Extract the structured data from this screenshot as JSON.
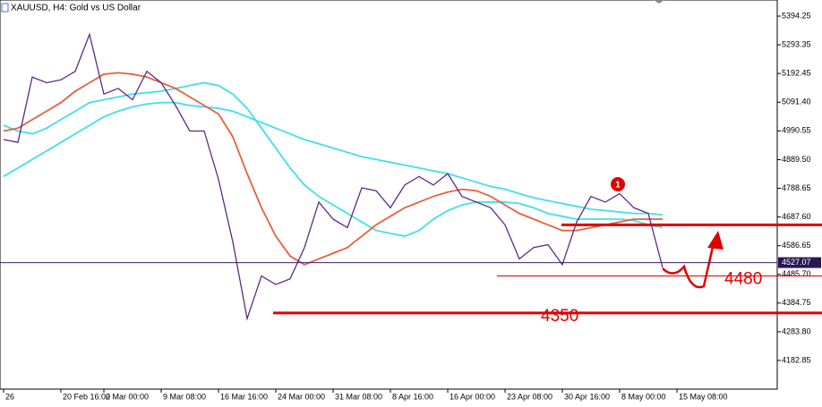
{
  "chart_data": {
    "type": "line",
    "title": "XAUUSD, H4:  Gold vs US Dollar",
    "categories": [
      "26",
      null,
      null,
      null,
      "20 Feb 16:00",
      null,
      null,
      "2 Mar 00:00",
      null,
      null,
      null,
      "9 Mar 08:00",
      null,
      null,
      null,
      "16 Mar 16:00",
      null,
      null,
      null,
      "24 Mar 00:00",
      null,
      null,
      null,
      "31 Mar 08:00",
      null,
      null,
      null,
      "8 Apr 16:00",
      null,
      null,
      null,
      "16 Apr 00:00",
      null,
      null,
      null,
      "23 Apr 08:00",
      null,
      null,
      null,
      "30 Apr 16:00",
      null,
      null,
      null,
      "8 May 00:00",
      null,
      null,
      null,
      "15 May 08:00"
    ],
    "series": [
      {
        "color": "#40e0e8",
        "values": [
          4830,
          4860,
          4890,
          4920,
          4950,
          4980,
          5010,
          5040,
          5060,
          5075,
          5085,
          5090,
          5090,
          5080,
          5075,
          5070,
          5060,
          5040,
          5020,
          5000,
          4980,
          4960,
          4945,
          4930,
          4915,
          4900,
          4890,
          4880,
          4870,
          4860,
          4850,
          4840,
          4825,
          4810,
          4795,
          4785,
          4770,
          4755,
          4745,
          4735,
          4725,
          4715,
          4710,
          4705,
          4700,
          4700,
          4695,
          null
        ]
      },
      {
        "color": "#40e0e8",
        "values": [
          5010,
          4990,
          4980,
          5000,
          5030,
          5060,
          5090,
          5100,
          5110,
          5120,
          5125,
          5130,
          5140,
          5150,
          5160,
          5150,
          5120,
          5070,
          5000,
          4930,
          4860,
          4800,
          4760,
          4730,
          4700,
          4670,
          4640,
          4630,
          4620,
          4640,
          4680,
          4710,
          4730,
          4740,
          4740,
          4740,
          4735,
          4720,
          4700,
          4690,
          4680,
          4680,
          4680,
          4680,
          4675,
          4660,
          4650,
          null
        ]
      },
      {
        "color": "#e8603c",
        "values": [
          4990,
          5000,
          5030,
          5060,
          5090,
          5130,
          5160,
          5190,
          5195,
          5190,
          5180,
          5160,
          5140,
          5110,
          5080,
          5050,
          4970,
          4840,
          4720,
          4620,
          4550,
          4520,
          4540,
          4560,
          4580,
          4620,
          4660,
          4690,
          4720,
          4740,
          4760,
          4775,
          4785,
          4780,
          4760,
          4730,
          4700,
          4680,
          4660,
          4640,
          4640,
          4650,
          4660,
          4670,
          4680,
          4680,
          4680,
          null
        ]
      },
      {
        "color": "#5b2a86",
        "values": [
          4960,
          4950,
          5180,
          5160,
          5170,
          5200,
          5330,
          5120,
          5140,
          5100,
          5200,
          5160,
          5080,
          4990,
          4990,
          4820,
          4600,
          4330,
          4480,
          4450,
          4470,
          4580,
          4740,
          4680,
          4650,
          4790,
          4780,
          4720,
          4800,
          4830,
          4800,
          4840,
          4760,
          4740,
          4720,
          4660,
          4540,
          4580,
          4590,
          4520,
          4670,
          4760,
          4740,
          4770,
          4720,
          4700,
          4510,
          null
        ]
      }
    ],
    "ylim": [
      4082,
      5451
    ],
    "yticks": [
      {
        "value": 5394.25,
        "label": "5394.25"
      },
      {
        "value": 5293.35,
        "label": "5293.35"
      },
      {
        "value": 5192.45,
        "label": "5192.45"
      },
      {
        "value": 5091.4,
        "label": "5091.40"
      },
      {
        "value": 4990.55,
        "label": "4990.55"
      },
      {
        "value": 4889.5,
        "label": "4889.50"
      },
      {
        "value": 4788.65,
        "label": "4788.65"
      },
      {
        "value": 4687.6,
        "label": "4687.60"
      },
      {
        "value": 4586.65,
        "label": "4586.65"
      },
      {
        "value": 4485.7,
        "label": "4485.70"
      },
      {
        "value": 4384.75,
        "label": "4384.75"
      },
      {
        "value": 4283.8,
        "label": "4283.80"
      },
      {
        "value": 4182.85,
        "label": "4182.85"
      }
    ],
    "current_price": 4527.07,
    "levels": [
      4660,
      4480,
      4350
    ],
    "level_labels": [
      null,
      "4480",
      "4350"
    ],
    "level_color": "#e00000",
    "signal": "1"
  }
}
